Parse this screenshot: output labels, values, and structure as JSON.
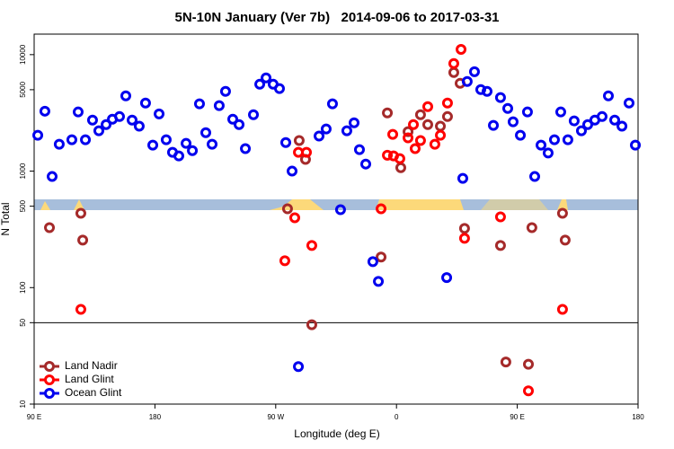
{
  "chart_data": {
    "type": "scatter",
    "title": "5N-10N January (Ver 7b)   2014-09-06 to 2017-03-31",
    "xlabel": "Longitude (deg E)",
    "ylabel": "N Total",
    "xlim": [
      90,
      540
    ],
    "xticks": [
      {
        "value": 90,
        "label": "90 E"
      },
      180,
      {
        "value": 270,
        "label": "90 W"
      },
      {
        "value": 360,
        "label": "0"
      },
      {
        "value": 450,
        "label": "90 E"
      },
      {
        "value": 540,
        "label": "180"
      }
    ],
    "ylim": [
      10,
      15000
    ],
    "log_y": true,
    "yticks": [
      10,
      50,
      100,
      500,
      1000,
      5000,
      10000
    ],
    "hline": 50,
    "legend": "bottomleft",
    "series": [
      {
        "name": "Land Nadir",
        "color": "#a52a2a",
        "x": [
          101.4,
          124.8,
          126.2,
          278.8,
          287.5,
          292.2,
          296.9,
          348.5,
          353.2,
          363.2,
          368.6,
          377.9,
          383.3,
          392.7,
          398.0,
          402.7,
          407.4,
          410.7,
          437.5,
          441.5,
          460.9,
          458.3,
          483.7,
          485.7
        ],
        "values": [
          327,
          435,
          256,
          475,
          1830,
          1260,
          48,
          183,
          3160,
          1070,
          2180,
          3050,
          2510,
          2430,
          2940,
          7020,
          5670,
          322,
          230,
          23,
          327,
          22,
          435,
          256
        ]
      },
      {
        "name": "Land Glint",
        "color": "#ff0000",
        "x": [
          124.8,
          276.8,
          284.2,
          286.9,
          292.9,
          296.9,
          348.5,
          353.2,
          357.2,
          357.8,
          362.5,
          368.6,
          372.6,
          373.9,
          377.9,
          383.3,
          388.6,
          392.7,
          398.0,
          402.7,
          408.1,
          410.7,
          437.5,
          458.3,
          483.7
        ],
        "values": [
          65,
          170,
          398,
          1450,
          1450,
          230,
          475,
          1370,
          2070,
          1350,
          1280,
          1930,
          2510,
          1560,
          1830,
          3580,
          1700,
          2030,
          3840,
          8380,
          11100,
          265,
          405,
          13,
          65
        ]
      },
      {
        "name": "Ocean Glint",
        "color": "#0000ee",
        "x": [
          92.7,
          98.0,
          103.4,
          108.7,
          118.1,
          122.8,
          128.2,
          133.5,
          138.2,
          143.6,
          148.3,
          153.6,
          158.3,
          163.0,
          168.3,
          173.0,
          178.4,
          183.1,
          188.4,
          193.1,
          197.8,
          203.2,
          207.9,
          213.2,
          217.9,
          222.6,
          227.9,
          232.6,
          238.0,
          242.7,
          247.4,
          253.4,
          258.1,
          262.8,
          268.1,
          272.8,
          277.5,
          282.2,
          286.9,
          302.3,
          307.6,
          312.3,
          318.3,
          323.0,
          328.4,
          332.4,
          337.1,
          342.4,
          346.5,
          397.4,
          409.4,
          412.7,
          418.1,
          422.8,
          427.5,
          432.2,
          437.5,
          442.9,
          446.9,
          452.3,
          457.6,
          463.0,
          467.7,
          473.0,
          477.7,
          482.4,
          487.7,
          492.4,
          497.8,
          502.5,
          507.8,
          513.2,
          517.9,
          522.6,
          528.0,
          533.3,
          538.0
        ],
        "values": [
          2030,
          3270,
          899,
          1700,
          1860,
          3220,
          1860,
          2740,
          2220,
          2510,
          2790,
          2940,
          4430,
          2740,
          2430,
          3840,
          1670,
          3100,
          1860,
          1450,
          1350,
          1730,
          1500,
          3780,
          2140,
          1700,
          3650,
          4840,
          2790,
          2510,
          1560,
          3050,
          5570,
          6310,
          5570,
          5110,
          1760,
          1000,
          21,
          2000,
          2300,
          3780,
          467,
          2220,
          2600,
          1530,
          1150,
          167,
          113,
          122,
          867,
          5880,
          7140,
          5010,
          4840,
          2470,
          4280,
          3450,
          2650,
          2030,
          3220,
          899,
          1670,
          1430,
          1860,
          3220,
          1860,
          2700,
          2220,
          2510,
          2740,
          2940,
          4430,
          2740,
          2430,
          3840,
          1670
        ]
      }
    ]
  }
}
